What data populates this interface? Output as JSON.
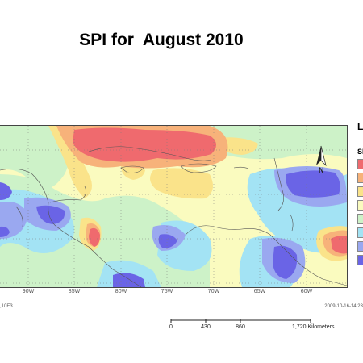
{
  "title": "SPI for  August 2010",
  "legend": {
    "title": "L",
    "subtitle": "SI",
    "colors": [
      "#ef6a6e",
      "#f7b27a",
      "#fae38a",
      "#fafbbf",
      "#cdf2c8",
      "#a3e3f4",
      "#9aa8f0",
      "#6a64e6"
    ]
  },
  "longitudes": [
    "90W",
    "85W",
    "80W",
    "75W",
    "70W",
    "65W",
    "60W"
  ],
  "footer": {
    "left": ",10E3",
    "right": "2009-10-16-14:23"
  },
  "scale": {
    "ticks": [
      "0",
      "430",
      "860",
      "1,720 Kilometers"
    ]
  },
  "north_arrow": {
    "label": "N"
  },
  "map_colors": {
    "sea": "#fafbbf",
    "very_wet": "#6a64e6",
    "wet": "#9aa8f0",
    "moist": "#a3e3f4",
    "near_normal": "#cdf2c8",
    "dry": "#fae38a",
    "moderately_dry": "#f7b27a",
    "very_dry": "#ef6a6e"
  }
}
